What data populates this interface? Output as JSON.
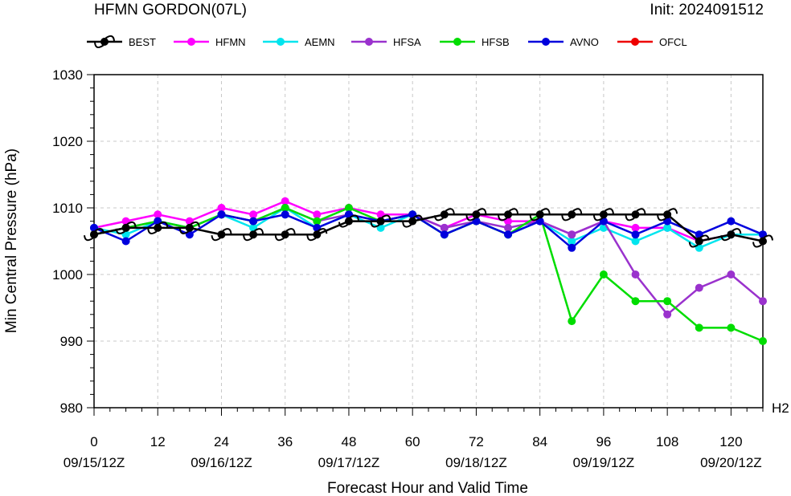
{
  "title_left": "HFMN GORDON(07L)",
  "title_right": "Init: 2024091512",
  "corner_label": "H2",
  "chart_data": {
    "type": "line",
    "xlabel": "Forecast Hour and Valid Time",
    "ylabel": "Min Central Pressure (hPa)",
    "xlim": [
      0,
      126
    ],
    "ylim": [
      980,
      1030
    ],
    "x_ticks": [
      0,
      12,
      24,
      36,
      48,
      60,
      72,
      84,
      96,
      108,
      120
    ],
    "x_tick_dates": [
      "09/15/12Z",
      "",
      "09/16/12Z",
      "",
      "09/17/12Z",
      "",
      "09/18/12Z",
      "",
      "09/19/12Z",
      "",
      "09/20/12Z"
    ],
    "y_ticks": [
      980,
      990,
      1000,
      1010,
      1020,
      1030
    ],
    "grid": true,
    "legend_position": "top",
    "series": [
      {
        "name": "HFMN",
        "color": "#ff00ff",
        "x": [
          0,
          6,
          12,
          18,
          24,
          30,
          36,
          42,
          48,
          54,
          60,
          66,
          72,
          78,
          84,
          90,
          96,
          102,
          108,
          114,
          120,
          126
        ],
        "values": [
          1007,
          1008,
          1009,
          1008,
          1010,
          1009,
          1011,
          1009,
          1010,
          1009,
          1009,
          1007,
          1009,
          1008,
          1008,
          1006,
          1008,
          1007,
          1007,
          1005,
          1006,
          1006
        ]
      },
      {
        "name": "AEMN",
        "color": "#00e5ee",
        "x": [
          0,
          6,
          12,
          18,
          24,
          30,
          36,
          42,
          48,
          54,
          60,
          66,
          72,
          78,
          84,
          90,
          96,
          102,
          108,
          114,
          120,
          126
        ],
        "values": [
          1007,
          1006,
          1008,
          1007,
          1009,
          1007,
          1010,
          1007,
          1009,
          1007,
          1009,
          1006,
          1008,
          1006,
          1008,
          1005,
          1007,
          1005,
          1007,
          1004,
          1006,
          1006
        ]
      },
      {
        "name": "HFSA",
        "color": "#9a32cd",
        "x": [
          0,
          6,
          12,
          18,
          24,
          30,
          36,
          42,
          48,
          54,
          60,
          66,
          72,
          78,
          84,
          90,
          96,
          102,
          108,
          114,
          120,
          126
        ],
        "values": [
          1006,
          1007,
          1008,
          1007,
          1009,
          1008,
          1010,
          1008,
          1009,
          1008,
          1009,
          1007,
          1008,
          1007,
          1008,
          1006,
          1008,
          1000,
          994,
          998,
          1000,
          996
        ]
      },
      {
        "name": "HFSB",
        "color": "#00dd00",
        "x": [
          0,
          6,
          12,
          18,
          24,
          30,
          36,
          42,
          48,
          54,
          60,
          66,
          72,
          78,
          84,
          90,
          96,
          102,
          108,
          114,
          120,
          126
        ],
        "values": [
          1006,
          1007,
          1008,
          1007,
          1009,
          1008,
          1010,
          1008,
          1010,
          1008,
          1009,
          1006,
          1008,
          1006,
          1009,
          993,
          1000,
          996,
          996,
          992,
          992,
          990
        ]
      },
      {
        "name": "AVNO",
        "color": "#0000dd",
        "x": [
          0,
          6,
          12,
          18,
          24,
          30,
          36,
          42,
          48,
          54,
          60,
          66,
          72,
          78,
          84,
          90,
          96,
          102,
          108,
          114,
          120,
          126
        ],
        "values": [
          1007,
          1005,
          1008,
          1006,
          1009,
          1008,
          1009,
          1007,
          1009,
          1008,
          1009,
          1006,
          1008,
          1006,
          1008,
          1004,
          1008,
          1006,
          1008,
          1006,
          1008,
          1006
        ]
      },
      {
        "name": "OFCL",
        "color": "#ee0000",
        "x": [],
        "values": []
      },
      {
        "name": "BEST",
        "color": "#000000",
        "x": [
          0,
          6,
          12,
          18,
          24,
          30,
          36,
          42,
          48,
          54,
          60,
          66,
          72,
          78,
          84,
          90,
          96,
          102,
          108,
          114,
          120,
          126
        ],
        "values": [
          1006,
          1007,
          1007,
          1007,
          1006,
          1006,
          1006,
          1006,
          1008,
          1008,
          1008,
          1009,
          1009,
          1009,
          1009,
          1009,
          1009,
          1009,
          1009,
          1005,
          1006,
          1005
        ]
      }
    ],
    "legend_order": [
      "BEST",
      "HFMN",
      "AEMN",
      "HFSA",
      "HFSB",
      "AVNO",
      "OFCL"
    ]
  }
}
